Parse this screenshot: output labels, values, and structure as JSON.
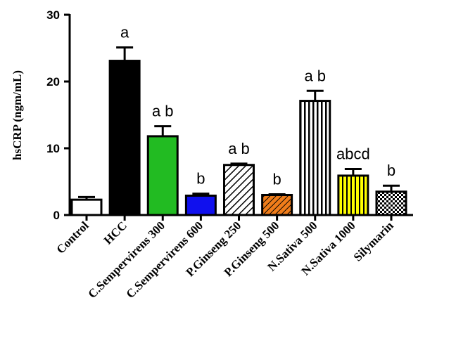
{
  "chart_data": {
    "type": "bar",
    "ylabel": "hsCRP (ngm/mL)",
    "xlabel": "",
    "title": "",
    "ylim": [
      0,
      30
    ],
    "yticks": [
      0,
      10,
      20,
      30
    ],
    "grid": false,
    "categories": [
      "Control",
      "HCC",
      "C.Sempervirens 300",
      "C.Sempervirens 600",
      "P.Ginseng 250",
      "P.Ginseng 500",
      "N.Sativa 500",
      "N.Sativa 1000",
      "Silymarin"
    ],
    "values": [
      2.3,
      23.1,
      11.8,
      2.9,
      7.5,
      3.0,
      17.1,
      5.9,
      3.5
    ],
    "errors": [
      0.4,
      2.0,
      1.5,
      0.3,
      0.2,
      0.1,
      1.5,
      1.0,
      0.9
    ],
    "significance": [
      "",
      "a",
      "a b",
      "b",
      "a b",
      "b",
      "a b",
      "abcd",
      "b"
    ],
    "fills": [
      "#ffffff",
      "#000000",
      "#22bb22",
      "#1010ee",
      "hatch-diagonal",
      "hatch-orange",
      "vertical-stripes",
      "yellow-stripes",
      "checkerboard"
    ]
  }
}
